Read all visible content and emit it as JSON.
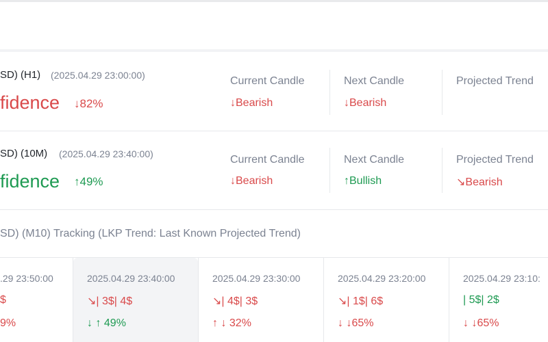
{
  "signals": [
    {
      "pair": "SD) (H1)",
      "time": "(2025.04.29 23:00:00)",
      "confidence_label": "fidence",
      "confidence": "↓82%",
      "columns": [
        {
          "label": "Current Candle",
          "value": "↓Bearish"
        },
        {
          "label": "Next Candle",
          "value": "↓Bearish"
        },
        {
          "label": "Projected Trend"
        }
      ]
    },
    {
      "pair": "SD) (10M)",
      "time": "(2025.04.29 23:40:00)",
      "confidence_label": "fidence",
      "confidence": "↑49%",
      "columns": [
        {
          "label": "Current Candle",
          "value": "↓Bearish"
        },
        {
          "label": "Next Candle",
          "value": "↑Bullish"
        },
        {
          "label": "Projected Trend",
          "value": "↘Bearish"
        }
      ]
    }
  ],
  "tracking": {
    "title": "SD) (M10) Tracking (LKP Trend: Last Known Projected Trend)",
    "cards": [
      {
        "time": ".29 23:50:00",
        "prices": "$",
        "result": "9%"
      },
      {
        "time": "2025.04.29 23:40:00",
        "prices": "↘| 3$| 4$",
        "result": "↓ ↑ 49%"
      },
      {
        "time": "2025.04.29 23:30:00",
        "prices": "↘| 4$| 3$",
        "result": "↑ ↓ 32%"
      },
      {
        "time": "2025.04.29 23:20:00",
        "prices": "↘| 1$| 6$",
        "result": "↓ ↓65%"
      },
      {
        "time": "2025.04.29 23:10:",
        "prices": "| 5$| 2$",
        "result": "↓ ↓65%"
      }
    ]
  }
}
